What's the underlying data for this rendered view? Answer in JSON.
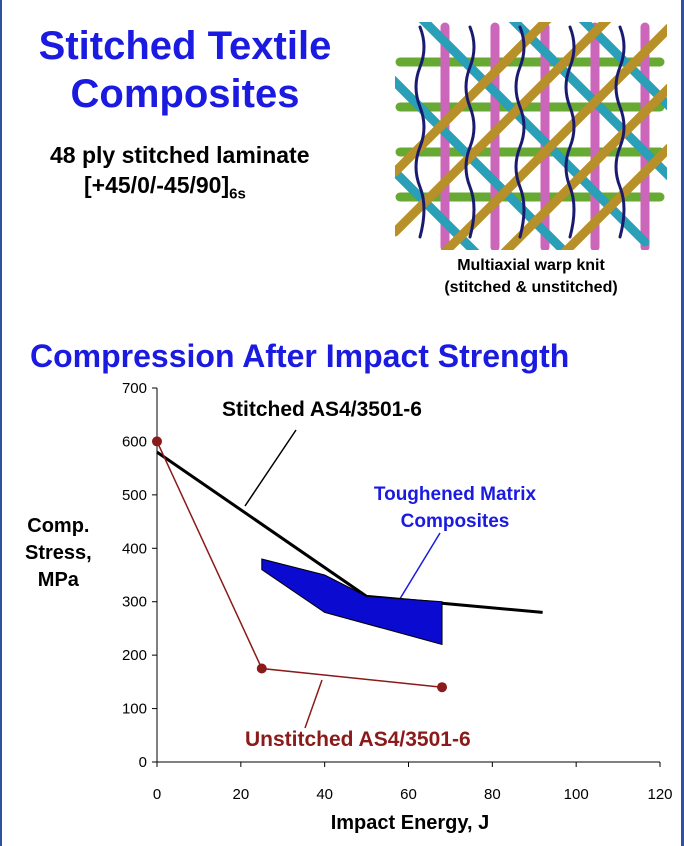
{
  "slide": {
    "title": "Stitched Textile Composites",
    "subtitle": "48 ply stitched laminate",
    "layup": "[+45/0/-45/90]",
    "layup_sub": "6s",
    "image_caption": [
      "Multiaxial warp knit",
      "(stitched & unstitched)"
    ]
  },
  "chart_data": {
    "type": "line",
    "title": "Compression After Impact Strength",
    "x_label": "Impact Energy, J",
    "y_label": [
      "Comp.",
      "Stress,",
      "MPa"
    ],
    "xlim": [
      0,
      120
    ],
    "xticks": [
      0,
      20,
      40,
      60,
      80,
      100,
      120
    ],
    "ylim": [
      0,
      700
    ],
    "yticks": [
      0,
      100,
      200,
      300,
      400,
      500,
      600,
      700
    ],
    "series": [
      {
        "name": "Stitched AS4/3501-6",
        "color": "#000000",
        "markers": false,
        "x": [
          0,
          50,
          92
        ],
        "values": [
          580,
          310,
          280
        ]
      },
      {
        "name": "Unstitched AS4/3501-6",
        "color": "#8b1a1a",
        "markers": true,
        "x": [
          0,
          25,
          68
        ],
        "values": [
          600,
          175,
          140
        ]
      },
      {
        "name": "Toughened Matrix Composites",
        "color": "#0a0ad0",
        "region": true,
        "x": [
          25,
          40,
          50,
          68,
          68,
          40,
          25
        ],
        "values": [
          380,
          350,
          310,
          300,
          220,
          280,
          360
        ]
      }
    ]
  }
}
